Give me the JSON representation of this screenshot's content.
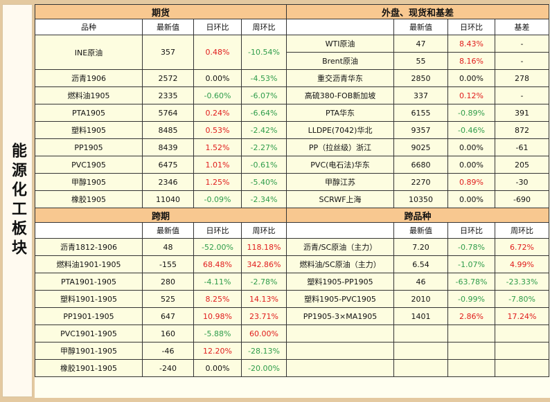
{
  "side_title": "能源化工板块",
  "top": {
    "left_title": "期货",
    "right_title": "外盘、现货和基差",
    "left_headers": [
      "品种",
      "最新值",
      "日环比",
      "周环比"
    ],
    "right_headers": [
      "",
      "最新值",
      "日环比",
      "基差"
    ],
    "rows": [
      {
        "l": [
          "INE原油",
          "357",
          "0.48%",
          "-10.54%"
        ],
        "r": [
          "WTI原油",
          "47",
          "8.43%",
          "-"
        ]
      },
      {
        "r": [
          "Brent原油",
          "55",
          "8.16%",
          "-"
        ]
      },
      {
        "l": [
          "沥青1906",
          "2572",
          "0.00%",
          "-4.53%"
        ],
        "r": [
          "重交沥青华东",
          "2850",
          "0.00%",
          "278"
        ]
      },
      {
        "l": [
          "燃料油1905",
          "2335",
          "-0.60%",
          "-6.07%"
        ],
        "r": [
          "高硫380-FOB新加坡",
          "337",
          "0.12%",
          "-"
        ]
      },
      {
        "l": [
          "PTA1905",
          "5764",
          "0.24%",
          "-6.64%"
        ],
        "r": [
          "PTA华东",
          "6155",
          "-0.89%",
          "391"
        ]
      },
      {
        "l": [
          "塑料1905",
          "8485",
          "0.53%",
          "-2.42%"
        ],
        "r": [
          "LLDPE(7042)华北",
          "9357",
          "-0.46%",
          "872"
        ]
      },
      {
        "l": [
          "PP1905",
          "8439",
          "1.52%",
          "-2.27%"
        ],
        "r": [
          "PP（拉丝级）浙江",
          "9025",
          "0.00%",
          "-61"
        ]
      },
      {
        "l": [
          "PVC1905",
          "6475",
          "1.01%",
          "-0.61%"
        ],
        "r": [
          "PVC(电石法)华东",
          "6680",
          "0.00%",
          "205"
        ]
      },
      {
        "l": [
          "甲醇1905",
          "2346",
          "1.25%",
          "-5.40%"
        ],
        "r": [
          "甲醇江苏",
          "2270",
          "0.89%",
          "-30"
        ]
      },
      {
        "l": [
          "橡胶1905",
          "11040",
          "-0.09%",
          "-2.34%"
        ],
        "r": [
          "SCRWF上海",
          "10350",
          "0.00%",
          "-690"
        ]
      }
    ]
  },
  "bottom": {
    "left_title": "跨期",
    "right_title": "跨品种",
    "left_headers": [
      "",
      "最新值",
      "日环比",
      "周环比"
    ],
    "right_headers": [
      "",
      "最新值",
      "日环比",
      "周环比"
    ],
    "rows": [
      {
        "l": [
          "沥青1812-1906",
          "48",
          "-52.00%",
          "118.18%"
        ],
        "r": [
          "沥青/SC原油（主力）",
          "7.20",
          "-0.78%",
          "6.72%"
        ]
      },
      {
        "l": [
          "燃料油1901-1905",
          "-155",
          "68.48%",
          "342.86%"
        ],
        "r": [
          "燃料油/SC原油（主力）",
          "6.54",
          "-1.07%",
          "4.99%"
        ]
      },
      {
        "l": [
          "PTA1901-1905",
          "280",
          "-4.11%",
          "-2.78%"
        ],
        "r": [
          "塑料1905-PP1905",
          "46",
          "-63.78%",
          "-23.33%"
        ]
      },
      {
        "l": [
          "塑料1901-1905",
          "525",
          "8.25%",
          "14.13%"
        ],
        "r": [
          "塑料1905-PVC1905",
          "2010",
          "-0.99%",
          "-7.80%"
        ]
      },
      {
        "l": [
          "PP1901-1905",
          "647",
          "10.98%",
          "23.71%"
        ],
        "r": [
          "PP1905-3×MA1905",
          "1401",
          "2.86%",
          "17.24%"
        ]
      },
      {
        "l": [
          "PVC1901-1905",
          "160",
          "-5.88%",
          "60.00%"
        ],
        "r": [
          "",
          "",
          "",
          ""
        ]
      },
      {
        "l": [
          "甲醇1901-1905",
          "-46",
          "12.20%",
          "-28.13%"
        ],
        "r": [
          "",
          "",
          "",
          ""
        ]
      },
      {
        "l": [
          "橡胶1901-1905",
          "-240",
          "0.00%",
          "-20.00%"
        ],
        "r": [
          "",
          "",
          "",
          ""
        ]
      }
    ]
  },
  "colors": {
    "up": "#e01b1b",
    "down": "#2e9c4a",
    "header_bg": "#f8c890",
    "cell_bg": "#fdfde0"
  }
}
